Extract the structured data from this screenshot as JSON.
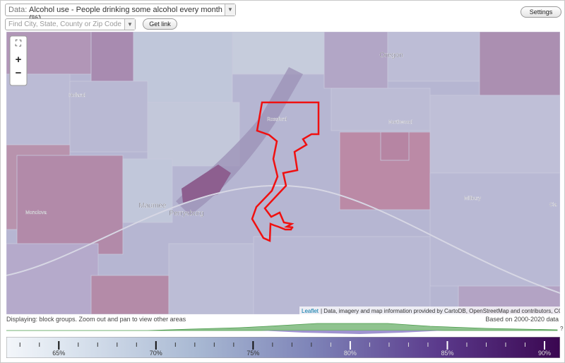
{
  "toolbar": {
    "data_label": "Data:",
    "dataset": "Alcohol use - People drinking some alcohol every month (%)",
    "search_placeholder": "Find City, State, County or Zip Code",
    "get_link": "Get link",
    "settings": "Settings"
  },
  "map": {
    "zoom_in": "+",
    "zoom_out": "−",
    "labels": [
      "Holland",
      "Oregon",
      "Rossford",
      "Northwood",
      "Maumee",
      "Perrysburg",
      "Millbury",
      "Monclova",
      "Cla"
    ],
    "attribution_link": "Leaflet",
    "attribution": "| Data, imagery and map information provided by CartoDB, OpenStreetMap and contributors, CC-BY-SA"
  },
  "status": {
    "displaying": "Displaying: block groups. Zoom out and pan to view other areas",
    "based_on": "Based on 2000-2020 data",
    "help": "?"
  },
  "legend": {
    "range": [
      62.3,
      90.8
    ],
    "ticks": [
      {
        "value": 65,
        "label": "65%"
      },
      {
        "value": 70,
        "label": "70%"
      },
      {
        "value": 75,
        "label": "75%"
      },
      {
        "value": 80,
        "label": "80%"
      },
      {
        "value": 85,
        "label": "85%"
      },
      {
        "value": 90,
        "label": "90%"
      }
    ],
    "minor_ticks": [
      63,
      64,
      66,
      67,
      68,
      69,
      71,
      72,
      73,
      74,
      76,
      77,
      78,
      79,
      81,
      82,
      83,
      84,
      86,
      87,
      88,
      89
    ]
  }
}
